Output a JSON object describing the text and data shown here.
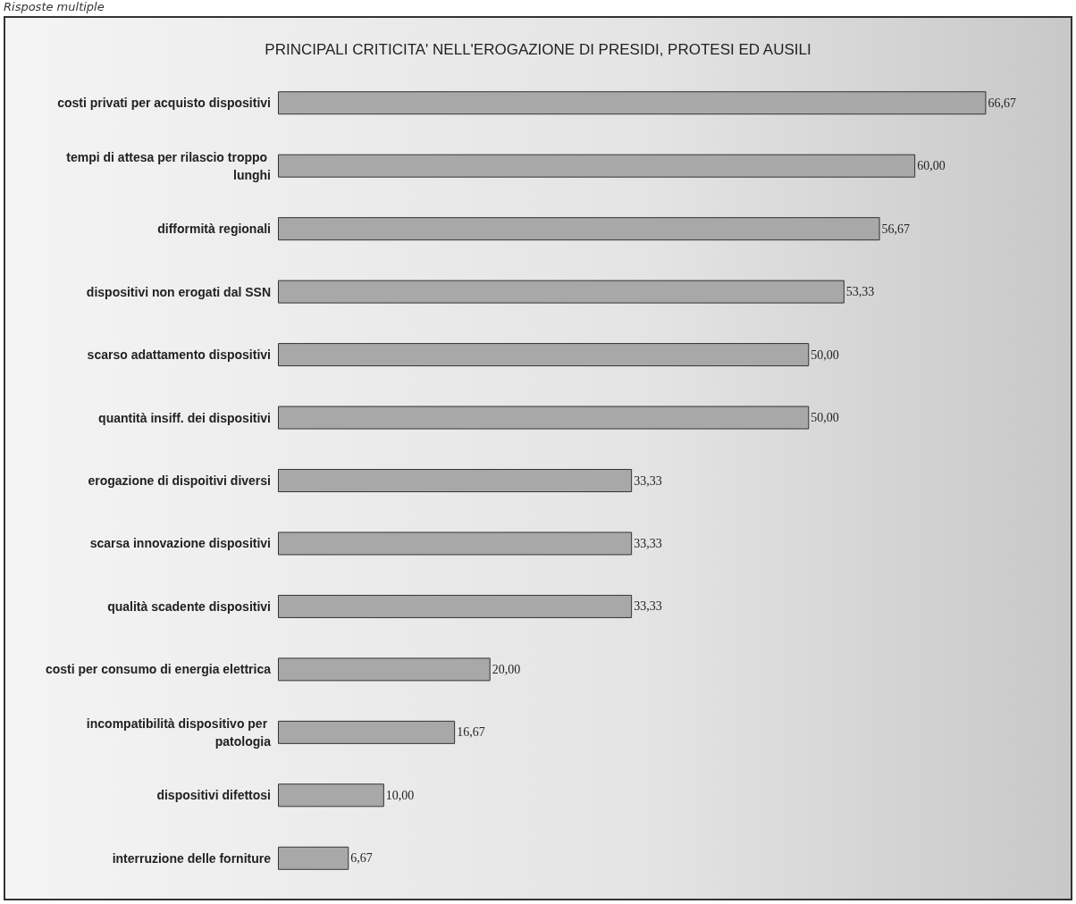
{
  "chart_data": {
    "type": "bar",
    "orientation": "horizontal",
    "title": "PRINCIPALI CRITICITA' NELL'EROGAZIONE DI PRESIDI, PROTESI ED AUSILI",
    "annotations": [
      "Risposte multiple"
    ],
    "categories": [
      "costi privati per acquisto dispositivi",
      "tempi di attesa per rilascio troppo lunghi",
      "difformità regionali",
      "dispositivi non erogati dal SSN",
      "scarso adattamento dispositivi",
      "quantità insiff. dei dispositivi",
      "erogazione di dispoitivi diversi",
      "scarsa innovazione dispositivi",
      "qualità scadente dispositivi",
      "costi per consumo di energia elettrica",
      "incompatibilità dispositivo per patologia",
      "dispositivi difettosi",
      "interruzione delle forniture"
    ],
    "values": [
      66.67,
      60.0,
      56.67,
      53.33,
      50.0,
      50.0,
      33.33,
      33.33,
      33.33,
      20.0,
      16.67,
      10.0,
      6.67
    ],
    "value_labels": [
      "66,67",
      "60,00",
      "56,67",
      "53,33",
      "50,00",
      "50,00",
      "33,33",
      "33,33",
      "33,33",
      "20,00",
      "16,67",
      "10,00",
      "6,67"
    ],
    "color": "#a8a8a8"
  }
}
